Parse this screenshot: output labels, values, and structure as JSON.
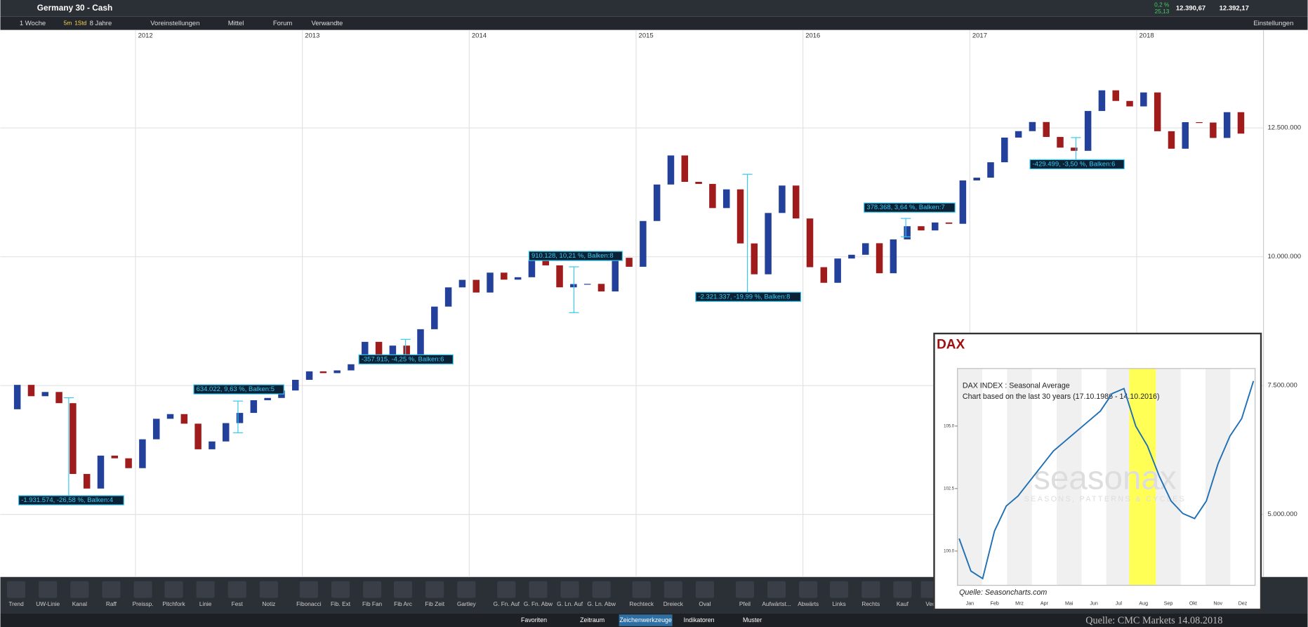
{
  "header": {
    "title": "Germany 30 - Cash",
    "change_pct": "0,2 %",
    "change_abs": "25,13",
    "bid": "12.390,67",
    "ask": "12.392,17",
    "settings": "Einstellungen"
  },
  "toolbar": {
    "interval": "1 Woche",
    "quick": [
      "5m",
      "1Std"
    ],
    "range": "8 Jahre",
    "items": [
      "Voreinstellungen",
      "Mittel",
      "Forum",
      "Verwandte"
    ]
  },
  "chart_data": {
    "type": "candlestick",
    "xlim": [
      2011.19,
      2018.76
    ],
    "xticks": [
      2012,
      2013,
      2014,
      2015,
      2016,
      2017,
      2018
    ],
    "ylim": [
      3786000,
      14190000
    ],
    "yticks": [
      {
        "value": 5000000,
        "label": "5.000.000"
      },
      {
        "value": 7500000,
        "label": "7.500.000"
      },
      {
        "value": 10000000,
        "label": "10.000.000"
      },
      {
        "value": 12500000,
        "label": "12.500.000"
      }
    ],
    "grid": true,
    "colors": {
      "up": "#23409a",
      "down": "#a01c1c"
    },
    "closes": [
      7041000,
      7514000,
      7294000,
      7376000,
      7159000,
      5785000,
      5502000,
      6141000,
      6089000,
      5898000,
      6458000,
      6856000,
      6947000,
      6761000,
      6264000,
      6416000,
      6772000,
      6970000,
      7216000,
      7260000,
      7405000,
      7612000,
      7776000,
      7742000,
      7795000,
      7914000,
      8349000,
      7959000,
      8276000,
      8103000,
      8594000,
      9033000,
      9406000,
      9552000,
      9306000,
      9692000,
      9556000,
      9603000,
      9943000,
      9833000,
      9407000,
      9470000,
      9474000,
      9327000,
      9980000,
      9806000,
      10694000,
      11402000,
      11966000,
      11454000,
      11414000,
      10945000,
      11308000,
      10259000,
      9660000,
      10850000,
      11382000,
      10743000,
      9798000,
      9495000,
      9966000,
      10039000,
      10263000,
      9680000,
      10337000,
      10593000,
      10511000,
      10665000,
      10640000,
      11481000,
      11535000,
      11834000,
      12313000,
      12438000,
      12615000,
      12325000,
      12118000,
      12056000,
      12829000,
      13230000,
      13024000,
      12918000,
      13189000,
      12436000,
      12097000,
      12612000,
      12605000,
      12306000,
      12806000,
      12390000
    ],
    "annotations": [
      "-1.931.574, -26,58 %, Balken:4",
      "634.022, 9,63 %, Balken:5",
      "-357.915, -4,25 %, Balken:6",
      "910.128, 10,21 %, Balken:8",
      "-2.321.337, -19,99 %, Balken:8",
      "378.368, 3,64 %, Balken:7",
      "-429.499, -3,50 %, Balken:6"
    ]
  },
  "seasonal": {
    "title": "DAX",
    "line1": "DAX INDEX : Seasonal Average",
    "line2": "Chart based on the last 30 years (17.10.1986 - 14.10.2016)",
    "watermark": "seasonax",
    "watermark_sub": "SEASONS, PATTERNS & CYCLES",
    "source": "Quelle: Seasoncharts.com",
    "months": [
      "Jan",
      "Feb",
      "Mrz",
      "Apr",
      "Mai",
      "Jun",
      "Jul",
      "Aug",
      "Sep",
      "Okt",
      "Nov",
      "Dez"
    ],
    "ylim": [
      98.63,
      107.3
    ],
    "yticks": [
      {
        "value": 100,
        "label": "100.0"
      },
      {
        "value": 102.5,
        "label": "102.5"
      },
      {
        "value": 105,
        "label": "105.0"
      }
    ],
    "color": "#1f6fb5",
    "values": [
      100.5,
      99.2,
      98.9,
      100.8,
      101.8,
      102.2,
      102.8,
      103.4,
      104.0,
      104.4,
      104.8,
      105.2,
      105.6,
      106.3,
      106.5,
      105.0,
      104.2,
      103.0,
      102.0,
      101.5,
      101.3,
      102.0,
      103.5,
      104.6,
      105.3,
      106.8
    ]
  },
  "tools": [
    "Trend",
    "UW-Linie",
    "Kanal",
    "Raff",
    "Preissp.",
    "Pitchfork",
    "Linie",
    "Fest",
    "Notiz",
    "Fibonacci",
    "Fib. Ext",
    "Fib Fan",
    "Fib Arc",
    "Fib Zeit",
    "Gartley",
    "G. Fn. Auf",
    "G. Fn. Abw",
    "G. Ln. Auf",
    "G. Ln. Abw",
    "Rechteck",
    "Dreieck",
    "Oval",
    "Pfeil",
    "Aufwärtst...",
    "Abwärts",
    "Links",
    "Rechts",
    "Kauf",
    "Ver"
  ],
  "tabs": [
    "Favoriten",
    "Zeitraum",
    "Zeichenwerkzeuge",
    "Indikatoren",
    "Muster"
  ],
  "footer": "Quelle: CMC Markets 14.08.2018"
}
